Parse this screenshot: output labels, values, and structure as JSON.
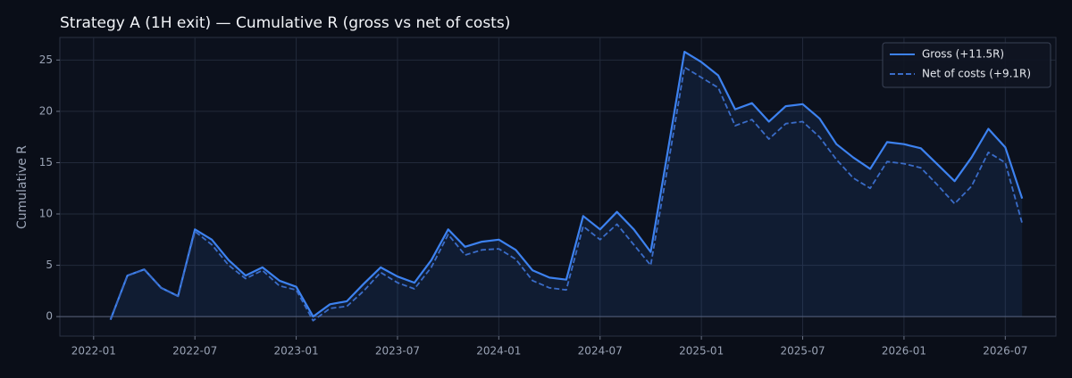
{
  "chart_data": {
    "type": "line",
    "title": "Strategy A (1H exit) — Cumulative R (gross vs net of costs)",
    "ylabel": "Cumulative R",
    "x": [
      "2022-02",
      "2022-03",
      "2022-04",
      "2022-05",
      "2022-06",
      "2022-07",
      "2022-08",
      "2022-09",
      "2022-10",
      "2022-11",
      "2022-12",
      "2023-01",
      "2023-02",
      "2023-03",
      "2023-04",
      "2023-05",
      "2023-06",
      "2023-07",
      "2023-08",
      "2023-09",
      "2023-10",
      "2023-11",
      "2023-12",
      "2024-01",
      "2024-02",
      "2024-03",
      "2024-04",
      "2024-05",
      "2024-06",
      "2024-07",
      "2024-08",
      "2024-09",
      "2024-10",
      "2024-11",
      "2024-12",
      "2025-01",
      "2025-02",
      "2025-03",
      "2025-04",
      "2025-05",
      "2025-06",
      "2025-07",
      "2025-08",
      "2025-09",
      "2025-10",
      "2025-11",
      "2025-12",
      "2026-01",
      "2026-02",
      "2026-03",
      "2026-04",
      "2026-05",
      "2026-06",
      "2026-07",
      "2026-08"
    ],
    "series": [
      {
        "name": "Gross (+11.5R)",
        "color": "#3d82f0",
        "linestyle": "solid",
        "area": true,
        "values": [
          -0.3,
          4.0,
          4.6,
          2.8,
          2.0,
          8.5,
          7.5,
          5.5,
          4.0,
          4.8,
          3.5,
          2.9,
          0.0,
          1.2,
          1.5,
          3.2,
          4.8,
          3.9,
          3.3,
          5.5,
          8.5,
          6.8,
          7.3,
          7.5,
          6.5,
          4.5,
          3.8,
          3.6,
          9.8,
          8.5,
          10.2,
          8.5,
          6.3,
          16.0,
          25.8,
          24.8,
          23.5,
          20.2,
          20.8,
          19.0,
          20.5,
          20.7,
          19.3,
          16.8,
          15.5,
          14.4,
          17.0,
          16.8,
          16.4,
          14.8,
          13.2,
          15.5,
          18.3,
          16.5,
          11.5
        ]
      },
      {
        "name": "Net of costs (+9.1R)",
        "color": "#3a6cc8",
        "linestyle": "dashed",
        "area": false,
        "values": [
          -0.3,
          4.0,
          4.6,
          2.8,
          2.0,
          8.3,
          7.0,
          5.0,
          3.7,
          4.5,
          3.0,
          2.6,
          -0.4,
          0.8,
          1.0,
          2.5,
          4.3,
          3.3,
          2.7,
          4.8,
          8.0,
          6.0,
          6.5,
          6.6,
          5.6,
          3.5,
          2.8,
          2.6,
          8.8,
          7.5,
          9.0,
          7.0,
          5.0,
          14.5,
          24.3,
          23.3,
          22.3,
          18.6,
          19.2,
          17.3,
          18.8,
          19.0,
          17.5,
          15.3,
          13.5,
          12.5,
          15.1,
          14.9,
          14.5,
          12.8,
          11.0,
          12.7,
          16.0,
          15.0,
          9.1
        ]
      }
    ],
    "xlim": [
      "2021-11",
      "2026-10"
    ],
    "xticks": [
      "2022-01",
      "2022-07",
      "2023-01",
      "2023-07",
      "2024-01",
      "2024-07",
      "2025-01",
      "2025-07",
      "2026-01",
      "2026-07"
    ],
    "ylim": [
      -1.9,
      27.2
    ],
    "yticks": [
      0,
      5,
      10,
      15,
      20,
      25
    ],
    "grid": true,
    "legend": "upper right"
  }
}
